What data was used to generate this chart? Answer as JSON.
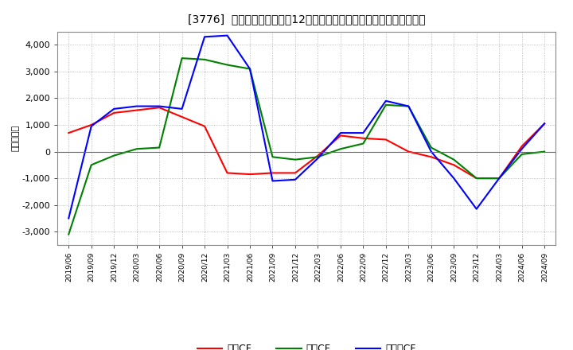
{
  "title": "[3776]  キャッシュフローの12か月移動合計の対前年同期増減額の推移",
  "ylabel": "（百万円）",
  "background_color": "#ffffff",
  "plot_bg_color": "#ffffff",
  "grid_color": "#aaaaaa",
  "x_labels": [
    "2019/06",
    "2019/09",
    "2019/12",
    "2020/03",
    "2020/06",
    "2020/09",
    "2020/12",
    "2021/03",
    "2021/06",
    "2021/09",
    "2021/12",
    "2022/03",
    "2022/06",
    "2022/09",
    "2022/12",
    "2023/03",
    "2023/06",
    "2023/09",
    "2023/12",
    "2024/03",
    "2024/06",
    "2024/09"
  ],
  "operating_cf": [
    700,
    1000,
    1450,
    1550,
    1650,
    1300,
    950,
    -800,
    -850,
    -800,
    -800,
    -150,
    600,
    500,
    450,
    0,
    -200,
    -500,
    -1000,
    -1000,
    200,
    1050
  ],
  "investing_cf": [
    -3100,
    -500,
    -150,
    100,
    150,
    3500,
    3450,
    3250,
    3100,
    -200,
    -300,
    -200,
    100,
    300,
    1750,
    1700,
    150,
    -300,
    -1000,
    -1000,
    -100,
    0
  ],
  "free_cf": [
    -2500,
    950,
    1600,
    1700,
    1700,
    1600,
    4300,
    4350,
    3100,
    -1100,
    -1050,
    -250,
    700,
    700,
    1900,
    1700,
    0,
    -1000,
    -2150,
    -1000,
    100,
    1050
  ],
  "ylim": [
    -3500,
    4500
  ],
  "yticks": [
    -3000,
    -2000,
    -1000,
    0,
    1000,
    2000,
    3000,
    4000
  ],
  "operating_color": "#ff0000",
  "investing_color": "#008000",
  "free_color": "#0000ff",
  "line_width": 1.5,
  "legend_labels": [
    "営業CF",
    "投資CF",
    "フリーCF"
  ]
}
